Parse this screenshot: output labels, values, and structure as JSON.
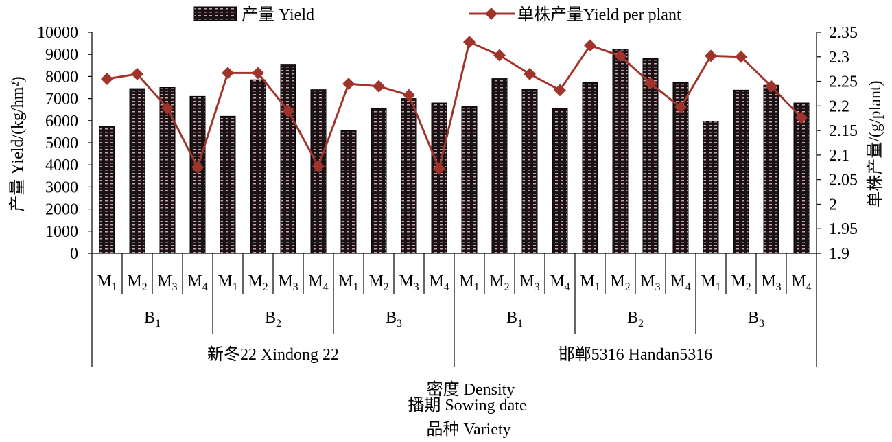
{
  "chart_data": {
    "type": "bar+line",
    "legend": {
      "placement": "top",
      "bar_label": "产量 Yield",
      "line_label": "单株产量Yield per plant"
    },
    "y_left": {
      "label": "产量 Yield/(kg/hm²)",
      "range": [
        0,
        10000
      ],
      "ticks": [
        "0",
        "1000",
        "2000",
        "3000",
        "4000",
        "5000",
        "6000",
        "7000",
        "8000",
        "9000",
        "10000"
      ]
    },
    "y_right": {
      "label": "单株产量/(g/plant)",
      "range": [
        1.9,
        2.35
      ],
      "ticks": [
        "1.9",
        "1.95",
        "2",
        "2.05",
        "2.1",
        "2.15",
        "2.2",
        "2.25",
        "2.3",
        "2.35"
      ]
    },
    "x_title_lines": [
      "密度 Density",
      "播期 Sowing date",
      "品种 Variety"
    ],
    "density_labels": [
      [
        "M",
        "1"
      ],
      [
        "M",
        "2"
      ],
      [
        "M",
        "3"
      ],
      [
        "M",
        "4"
      ],
      [
        "M",
        "1"
      ],
      [
        "M",
        "2"
      ],
      [
        "M",
        "3"
      ],
      [
        "M",
        "4"
      ],
      [
        "M",
        "1"
      ],
      [
        "M",
        "2"
      ],
      [
        "M",
        "3"
      ],
      [
        "M",
        "4"
      ],
      [
        "M",
        "1"
      ],
      [
        "M",
        "2"
      ],
      [
        "M",
        "3"
      ],
      [
        "M",
        "4"
      ],
      [
        "M",
        "1"
      ],
      [
        "M",
        "2"
      ],
      [
        "M",
        "3"
      ],
      [
        "M",
        "4"
      ],
      [
        "M",
        "1"
      ],
      [
        "M",
        "2"
      ],
      [
        "M",
        "3"
      ],
      [
        "M",
        "4"
      ]
    ],
    "sowing_labels": [
      [
        "B",
        "1"
      ],
      [
        "B",
        "2"
      ],
      [
        "B",
        "3"
      ],
      [
        "B",
        "1"
      ],
      [
        "B",
        "2"
      ],
      [
        "B",
        "3"
      ]
    ],
    "variety_labels": [
      "新冬22 Xindong 22",
      "邯郸5316 Handan5316"
    ],
    "series": [
      {
        "name": "产量 Yield",
        "kind": "bar",
        "axis": "left",
        "values": [
          5750,
          7450,
          7500,
          7100,
          6200,
          7850,
          8550,
          7400,
          5550,
          6550,
          7000,
          6800,
          6650,
          7900,
          7420,
          6550,
          7720,
          9220,
          8820,
          7720,
          5970,
          7380,
          7600,
          6800
        ]
      },
      {
        "name": "单株产量Yield per plant",
        "kind": "line",
        "axis": "right",
        "values": [
          2.255,
          2.265,
          2.195,
          2.075,
          2.267,
          2.267,
          2.19,
          2.077,
          2.245,
          2.24,
          2.222,
          2.072,
          2.33,
          2.303,
          2.265,
          2.232,
          2.323,
          2.302,
          2.246,
          2.197,
          2.302,
          2.3,
          2.24,
          2.176
        ]
      }
    ],
    "colors": {
      "bar_fill": "#1a1213",
      "bar_dash": "#c9a3b2",
      "line": "#a0342b",
      "marker": "#a0342b"
    }
  }
}
